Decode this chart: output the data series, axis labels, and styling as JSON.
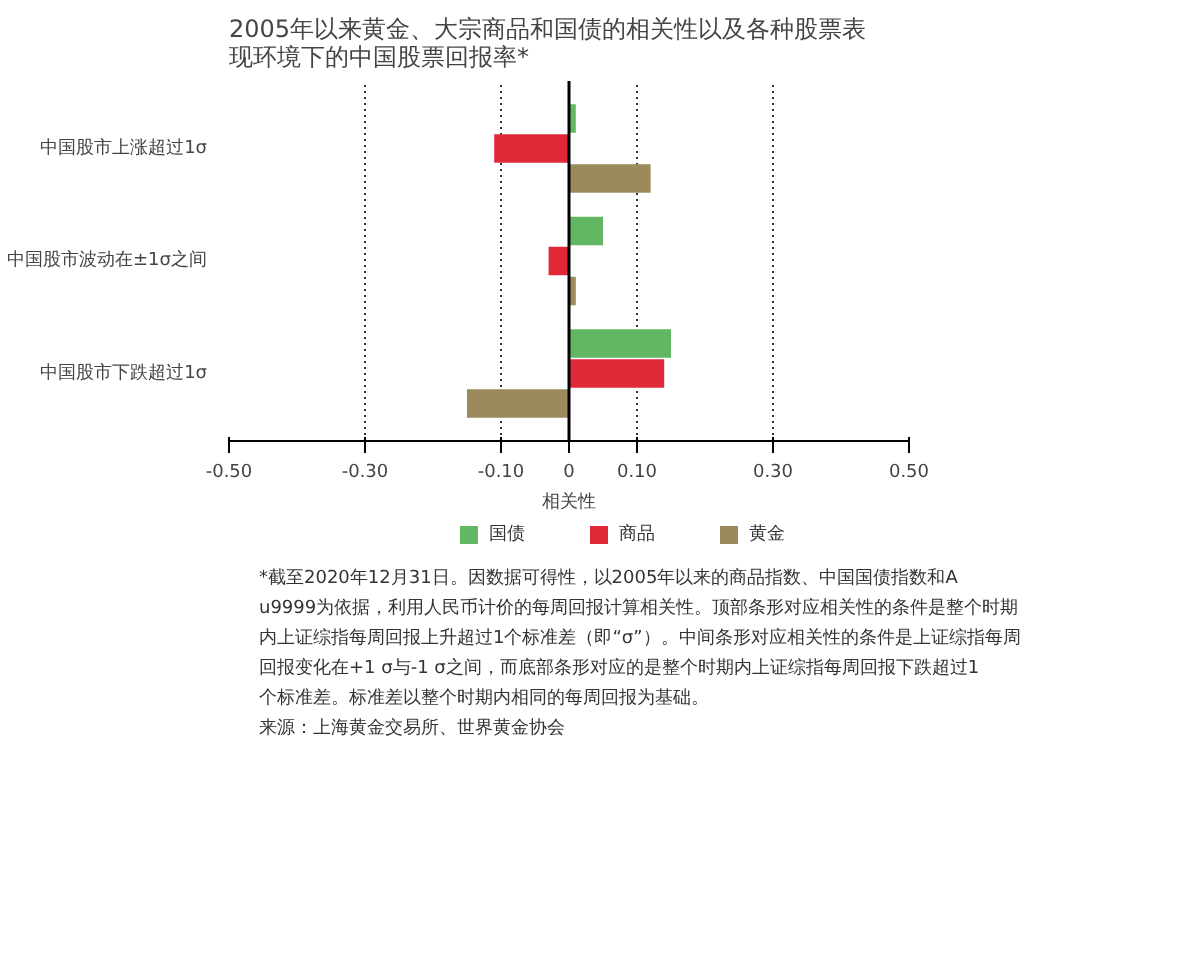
{
  "chart_data": {
    "type": "bar",
    "orientation": "horizontal",
    "title": "2005年以来黄金、大宗商品和国债的相关性以及各种股票表现环境下的中国股票回报率*",
    "xlabel": "相关性",
    "categories": [
      "中国股市上涨超过1σ",
      "中国股市波动在±1σ之间",
      "中国股市下跌超过1σ"
    ],
    "series": [
      {
        "name": "国债",
        "color": "#62b862",
        "values": [
          0.01,
          0.05,
          0.15
        ]
      },
      {
        "name": "商品",
        "color": "#e02838",
        "values": [
          -0.11,
          -0.03,
          0.14
        ]
      },
      {
        "name": "黄金",
        "color": "#9a8a5c",
        "values": [
          0.12,
          0.01,
          -0.15
        ]
      }
    ],
    "xlim": [
      -0.5,
      0.5
    ],
    "xticks": [
      {
        "value": -0.5,
        "label": "-0.50"
      },
      {
        "value": -0.3,
        "label": "-0.30"
      },
      {
        "value": -0.1,
        "label": "-0.10"
      },
      0,
      {
        "value": 0.1,
        "label": "0.10"
      },
      {
        "value": 0.3,
        "label": "0.30"
      },
      {
        "value": 0.5,
        "label": "0.50"
      }
    ],
    "grid": "x",
    "legend": "bottom",
    "ref_lines": [
      {
        "axis": "x",
        "value": 0,
        "color": "#000000",
        "line_style": "solid"
      }
    ],
    "annotations": [
      "*截至2020年12月31日。因数据可得性，以2005年以来的商品指数、中国国债指数和Au9999为依据，利用人民币计价的每周回报计算相关性。顶部条形对应相关性的条件是整个时期内上证综指每周回报上升超过1个标准差（即“σ”）。中间条形对应相关性的条件是上证综指每周回报变化在+1 σ与-1 σ之间，而底部条形对应的是整个时期内上证综指每周回报下跌超过1个标准差。标准差以整个时期内相同的每周回报为基础。",
      "来源：上海黄金交易所、世界黄金协会"
    ]
  }
}
